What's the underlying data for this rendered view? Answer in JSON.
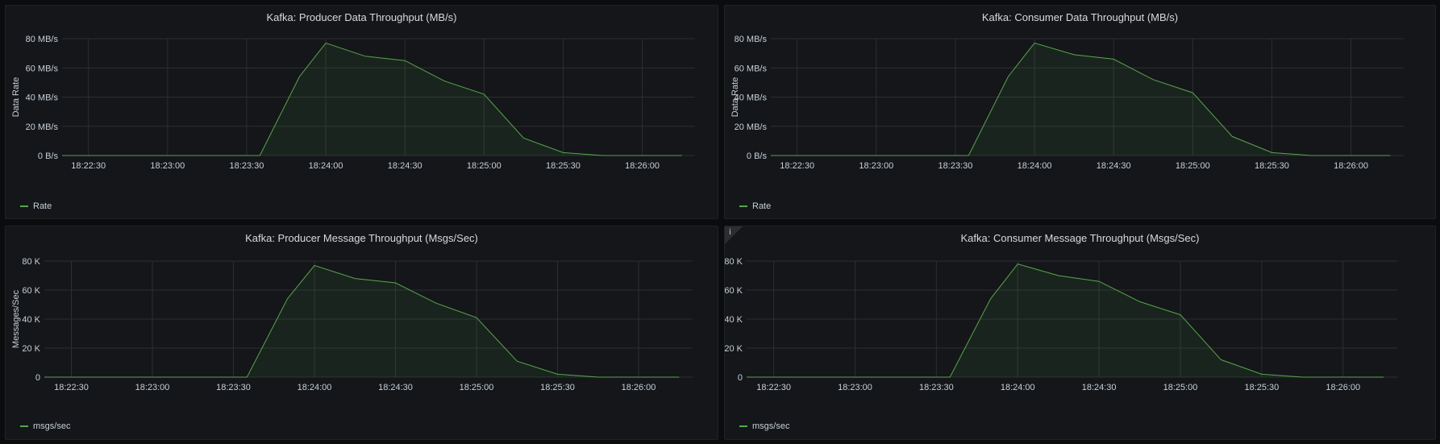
{
  "dashboard": {
    "panels": [
      {
        "title": "Kafka: Producer Data Throughput (MB/s)",
        "legend": "Rate",
        "has_info": false
      },
      {
        "title": "Kafka: Consumer Data Throughput (MB/s)",
        "legend": "Rate",
        "has_info": false
      },
      {
        "title": "Kafka: Producer Message Throughput (Msgs/Sec)",
        "legend": "msgs/sec",
        "has_info": true,
        "info_glyph": ""
      },
      {
        "title": "Kafka: Consumer Message Throughput (Msgs/Sec)",
        "legend": "msgs/sec",
        "has_info": true,
        "info_glyph": "i"
      }
    ]
  },
  "colors": {
    "series": "#56a64b",
    "grid": "#2c2e33",
    "text": "#c7d0d9"
  },
  "chart_data": [
    {
      "type": "area",
      "title": "Kafka: Producer Data Throughput (MB/s)",
      "xlabel": "",
      "ylabel": "Data Rate",
      "ylim": [
        0,
        80
      ],
      "yticks": [
        0,
        20,
        40,
        60,
        80
      ],
      "ytick_labels": [
        "0 B/s",
        "20 MB/s",
        "40 MB/s",
        "60 MB/s",
        "80 MB/s"
      ],
      "xlim": [
        "18:22:20",
        "18:26:20"
      ],
      "xticks": [
        "18:22:30",
        "18:23:00",
        "18:23:30",
        "18:24:00",
        "18:24:30",
        "18:25:00",
        "18:25:30",
        "18:26:00"
      ],
      "legend_position": "bottom-left",
      "grid": true,
      "series": [
        {
          "name": "Rate",
          "x": [
            "18:22:20",
            "18:22:35",
            "18:22:50",
            "18:23:05",
            "18:23:20",
            "18:23:35",
            "18:23:50",
            "18:24:00",
            "18:24:15",
            "18:24:30",
            "18:24:45",
            "18:25:00",
            "18:25:15",
            "18:25:30",
            "18:25:45",
            "18:26:00",
            "18:26:15"
          ],
          "values": [
            0,
            0,
            0,
            0,
            0,
            0,
            54,
            77,
            68,
            65,
            51,
            42,
            12,
            2,
            0,
            0,
            0
          ]
        }
      ]
    },
    {
      "type": "area",
      "title": "Kafka: Consumer Data Throughput (MB/s)",
      "xlabel": "",
      "ylabel": "Data Rate",
      "ylim": [
        0,
        80
      ],
      "yticks": [
        0,
        20,
        40,
        60,
        80
      ],
      "ytick_labels": [
        "0 B/s",
        "20 MB/s",
        "40 MB/s",
        "60 MB/s",
        "80 MB/s"
      ],
      "xlim": [
        "18:22:20",
        "18:26:20"
      ],
      "xticks": [
        "18:22:30",
        "18:23:00",
        "18:23:30",
        "18:24:00",
        "18:24:30",
        "18:25:00",
        "18:25:30",
        "18:26:00"
      ],
      "legend_position": "bottom-left",
      "grid": true,
      "series": [
        {
          "name": "Rate",
          "x": [
            "18:22:20",
            "18:22:35",
            "18:22:50",
            "18:23:05",
            "18:23:20",
            "18:23:35",
            "18:23:50",
            "18:24:00",
            "18:24:15",
            "18:24:30",
            "18:24:45",
            "18:25:00",
            "18:25:15",
            "18:25:30",
            "18:25:45",
            "18:26:00",
            "18:26:15"
          ],
          "values": [
            0,
            0,
            0,
            0,
            0,
            0,
            54,
            77,
            69,
            66,
            52,
            43,
            13,
            2,
            0,
            0,
            0
          ]
        }
      ]
    },
    {
      "type": "area",
      "title": "Kafka: Producer Message Throughput (Msgs/Sec)",
      "xlabel": "",
      "ylabel": "Messages/Sec",
      "ylim": [
        0,
        80000
      ],
      "yticks": [
        0,
        20000,
        40000,
        60000,
        80000
      ],
      "ytick_labels": [
        "0",
        "20 K",
        "40 K",
        "60 K",
        "80 K"
      ],
      "xlim": [
        "18:22:20",
        "18:26:20"
      ],
      "xticks": [
        "18:22:30",
        "18:23:00",
        "18:23:30",
        "18:24:00",
        "18:24:30",
        "18:25:00",
        "18:25:30",
        "18:26:00"
      ],
      "legend_position": "bottom-left",
      "grid": true,
      "series": [
        {
          "name": "msgs/sec",
          "x": [
            "18:22:20",
            "18:22:35",
            "18:22:50",
            "18:23:05",
            "18:23:20",
            "18:23:35",
            "18:23:50",
            "18:24:00",
            "18:24:15",
            "18:24:30",
            "18:24:45",
            "18:25:00",
            "18:25:15",
            "18:25:30",
            "18:25:45",
            "18:26:00",
            "18:26:15"
          ],
          "values": [
            0,
            0,
            0,
            0,
            0,
            0,
            54000,
            77000,
            68000,
            65000,
            51000,
            41000,
            11000,
            2000,
            0,
            0,
            0
          ]
        }
      ]
    },
    {
      "type": "area",
      "title": "Kafka: Consumer Message Throughput (Msgs/Sec)",
      "xlabel": "",
      "ylabel": "",
      "ylim": [
        0,
        80000
      ],
      "yticks": [
        0,
        20000,
        40000,
        60000,
        80000
      ],
      "ytick_labels": [
        "0",
        "20 K",
        "40 K",
        "60 K",
        "80 K"
      ],
      "xlim": [
        "18:22:20",
        "18:26:20"
      ],
      "xticks": [
        "18:22:30",
        "18:23:00",
        "18:23:30",
        "18:24:00",
        "18:24:30",
        "18:25:00",
        "18:25:30",
        "18:26:00"
      ],
      "legend_position": "bottom-left",
      "grid": true,
      "series": [
        {
          "name": "msgs/sec",
          "x": [
            "18:22:20",
            "18:22:35",
            "18:22:50",
            "18:23:05",
            "18:23:20",
            "18:23:35",
            "18:23:50",
            "18:24:00",
            "18:24:15",
            "18:24:30",
            "18:24:45",
            "18:25:00",
            "18:25:15",
            "18:25:30",
            "18:25:45",
            "18:26:00",
            "18:26:15"
          ],
          "values": [
            0,
            0,
            0,
            0,
            0,
            0,
            54000,
            78000,
            70000,
            66000,
            52000,
            43000,
            12000,
            2000,
            0,
            0,
            0
          ]
        }
      ]
    }
  ]
}
